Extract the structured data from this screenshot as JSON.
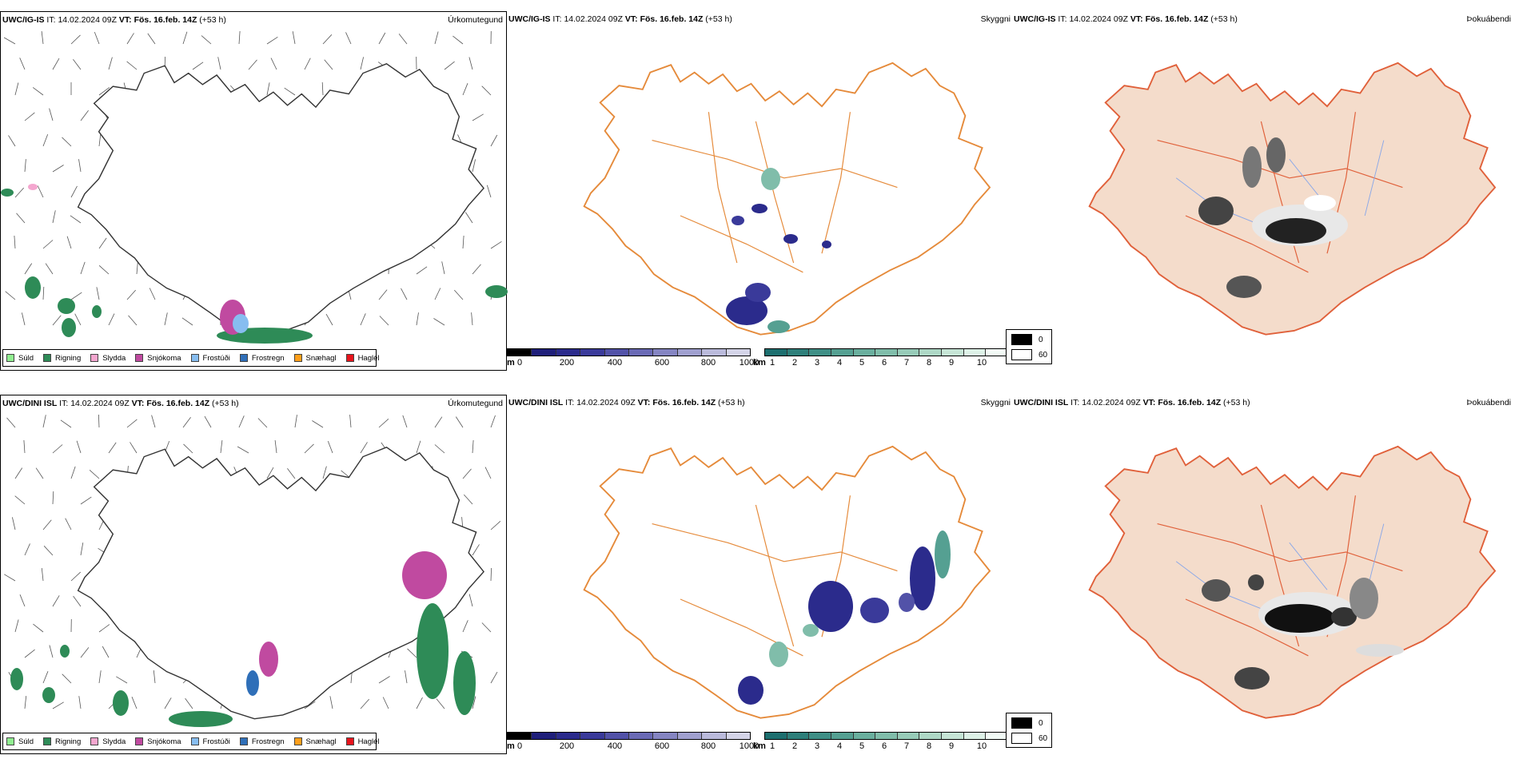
{
  "rows": [
    {
      "model": "UWC/IG-IS",
      "it_label": "IT:",
      "it_value": "14.02.2024 09Z",
      "vt_label": "VT:",
      "vt_value": "Fös. 16.feb. 14Z",
      "lead": "(+53 h)"
    },
    {
      "model": "UWC/DINI ISL",
      "it_label": "IT:",
      "it_value": "14.02.2024 09Z",
      "vt_label": "VT:",
      "vt_value": "Fös. 16.feb. 14Z",
      "lead": "(+53 h)"
    }
  ],
  "panel_titles": {
    "precip_type": "Úrkomutegund",
    "visibility": "Skyggni",
    "fog": "Þokuábendi"
  },
  "precip_legend": [
    {
      "label": "Súld",
      "color": "#90ee90"
    },
    {
      "label": "Rigning",
      "color": "#2e8b57"
    },
    {
      "label": "Slydda",
      "color": "#f4a6cf"
    },
    {
      "label": "Snjókoma",
      "color": "#c04aa0"
    },
    {
      "label": "Frostúði",
      "color": "#87bdf0"
    },
    {
      "label": "Frostregn",
      "color": "#2f6fb8"
    },
    {
      "label": "Snæhagl",
      "color": "#ff9f1a"
    },
    {
      "label": "Haglél",
      "color": "#e8141c"
    }
  ],
  "visibility_bars": {
    "m": {
      "unit": "m",
      "ticks": [
        "0",
        "200",
        "400",
        "600",
        "800",
        "1000"
      ],
      "colors": [
        "#000000",
        "#1f1f7a",
        "#2b2b8c",
        "#3a3a9a",
        "#5252a8",
        "#6a6ab5",
        "#8585c2",
        "#a0a0cf",
        "#babadb",
        "#d4d4e8"
      ]
    },
    "km": {
      "unit": "km",
      "ticks": [
        "1",
        "2",
        "3",
        "4",
        "5",
        "6",
        "7",
        "8",
        "9",
        "10"
      ],
      "colors": [
        "#1d6f6f",
        "#2e7f7a",
        "#3f8f86",
        "#55a092",
        "#6aaf9e",
        "#80bdaa",
        "#97cbb8",
        "#aed8c6",
        "#c6e5d6",
        "#ddf1e7",
        "#f2faf6"
      ]
    }
  },
  "fog_legend": [
    {
      "value": "0",
      "color": "#000000"
    },
    {
      "value": "60",
      "color": "#ffffff"
    }
  ]
}
